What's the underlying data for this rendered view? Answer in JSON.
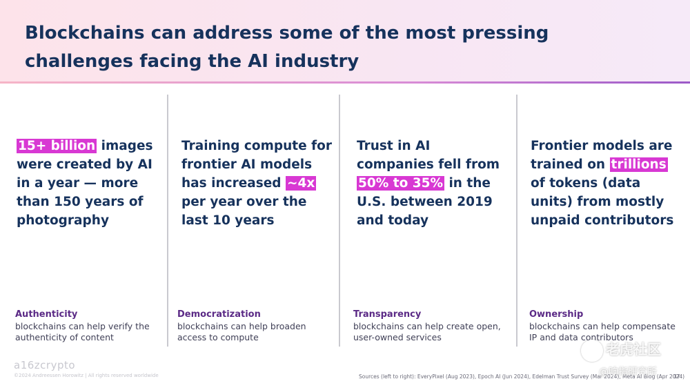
{
  "title": "Blockchains can address some of the most pressing challenges facing the AI industry",
  "columns": [
    {
      "stat_parts": [
        {
          "text": "15+ billion",
          "highlight": true
        },
        {
          "text": " images were created by AI in a year — more than 150 years of photography",
          "highlight": false
        }
      ],
      "category": "Authenticity",
      "description": "blockchains can help verify the authenticity of content"
    },
    {
      "stat_parts": [
        {
          "text": "Training compute for frontier AI models has increased ",
          "highlight": false
        },
        {
          "text": "~4x",
          "highlight": true
        },
        {
          "text": " per year over the last 10 years",
          "highlight": false
        }
      ],
      "category": "Democratization",
      "description": "blockchains can help broaden access to compute"
    },
    {
      "stat_parts": [
        {
          "text": "Trust in AI companies fell from ",
          "highlight": false
        },
        {
          "text": "50% to 35%",
          "highlight": true
        },
        {
          "text": " in the U.S. between 2019 and today",
          "highlight": false
        }
      ],
      "category": "Transparency",
      "description": "blockchains can help create open, user-owned services"
    },
    {
      "stat_parts": [
        {
          "text": "Frontier models are trained on ",
          "highlight": false
        },
        {
          "text": "trillions",
          "highlight": true
        },
        {
          "text": " of tokens (data units) from mostly unpaid contributors",
          "highlight": false
        }
      ],
      "category": "Ownership",
      "description": "blockchains can help compensate IP and data contributors"
    }
  ],
  "footer": {
    "logo": "a16zcrypto",
    "copyright": "©2024 Andreessen Horowitz | All rights reserved worldwide",
    "sources": "Sources (left to right): EveryPixel (Aug 2023), Epoch AI (Jun 2024), Edelman Trust Survey (Mar 2024), Meta AI Blog (Apr 2024)",
    "page_number": "37"
  },
  "watermark": {
    "line1": "老虎社区",
    "line2": "@响指研究所"
  },
  "colors": {
    "highlight": "#d838d3",
    "title": "#16325c",
    "category": "#5b2a86"
  }
}
